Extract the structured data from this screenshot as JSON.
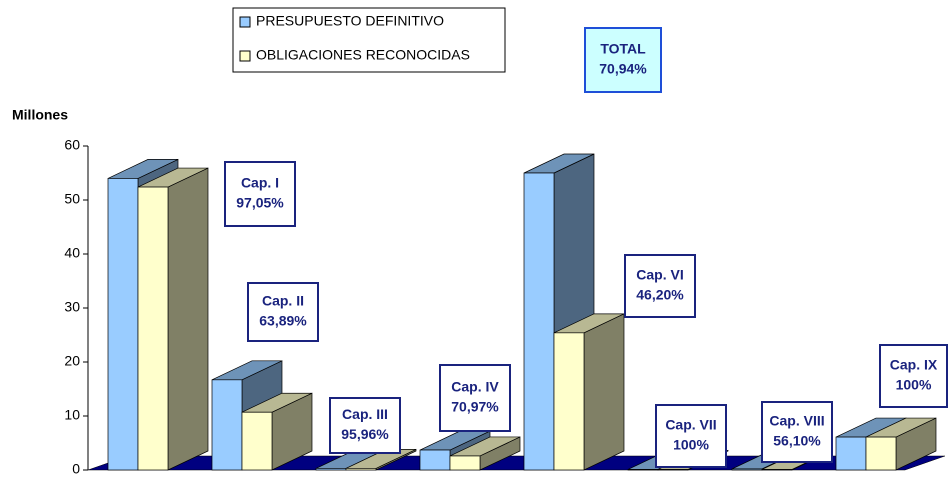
{
  "chart_data": {
    "type": "bar",
    "y_label": "Millones",
    "categories": [
      null,
      null,
      null,
      null,
      null,
      null,
      null,
      null
    ],
    "series": [
      {
        "name": "PRESUPUESTO DEFINITIVO",
        "color": "#99ccff",
        "values": [
          54,
          16.7,
          0.3,
          3.7,
          55,
          0.1,
          0.2,
          6.1
        ]
      },
      {
        "name": "OBLIGACIONES RECONOCIDAS",
        "color": "#ffffcc",
        "values": [
          52.4,
          10.7,
          0.3,
          2.6,
          25.4,
          0.1,
          0.1,
          6.1
        ]
      }
    ],
    "ylim": [
      0,
      60
    ],
    "yticks": [
      0,
      10,
      20,
      30,
      40,
      50,
      60
    ],
    "annotations": [
      {
        "lines": [
          "Cap. I",
          "97,05%"
        ]
      },
      {
        "lines": [
          "Cap. II",
          "63,89%"
        ]
      },
      {
        "lines": [
          "Cap. III",
          "95,96%"
        ]
      },
      {
        "lines": [
          "Cap. IV",
          "70,97%"
        ]
      },
      {
        "lines": [
          "Cap. VI",
          "46,20%"
        ]
      },
      {
        "lines": [
          "Cap. VII",
          "100%"
        ]
      },
      {
        "lines": [
          "Cap. VIII",
          "56,10%"
        ]
      },
      {
        "lines": [
          "Cap. IX",
          "100%"
        ]
      }
    ],
    "total": {
      "lines": [
        "TOTAL",
        "70,94%"
      ]
    }
  }
}
